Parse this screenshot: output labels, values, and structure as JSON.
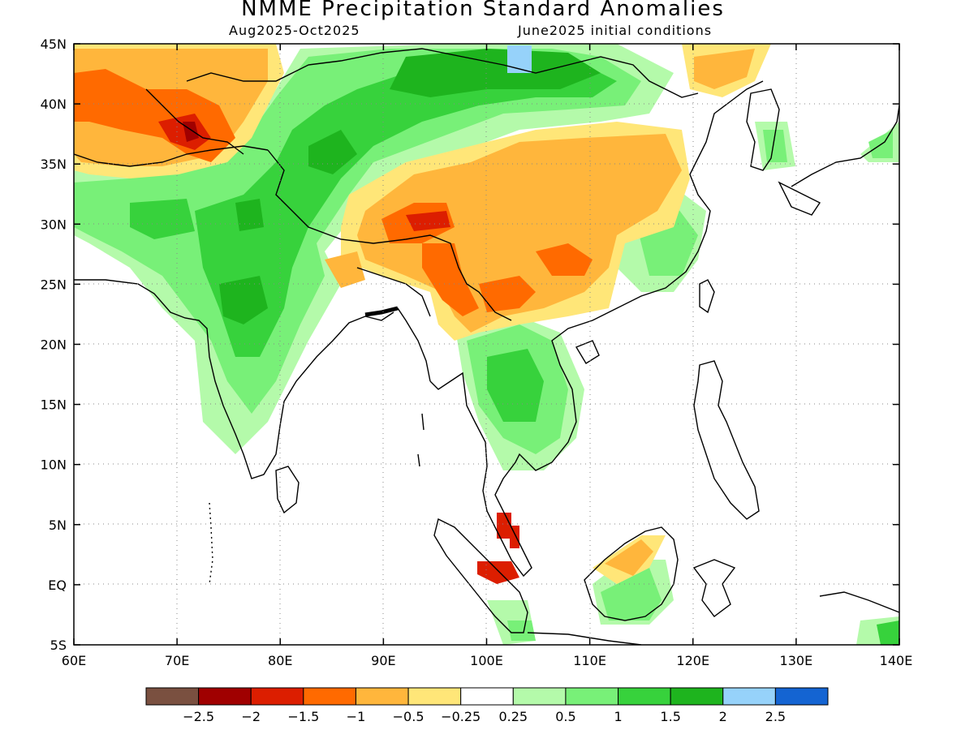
{
  "title": "NMME Precipitation Standard Anomalies",
  "period": "Aug2025-Oct2025",
  "init": "June2025 initial conditions",
  "lat_labels": [
    "45N",
    "40N",
    "35N",
    "30N",
    "25N",
    "20N",
    "15N",
    "10N",
    "5N",
    "EQ",
    "5S"
  ],
  "lon_labels": [
    "60E",
    "70E",
    "80E",
    "90E",
    "100E",
    "110E",
    "120E",
    "130E",
    "140E"
  ],
  "legend": {
    "colors": [
      "#7a5040",
      "#a00000",
      "#dc1e00",
      "#ff6a00",
      "#ffb63c",
      "#ffe678",
      "#ffffff",
      "#b4faaa",
      "#78f078",
      "#37d23c",
      "#1eb41e",
      "#96d2fa",
      "#1464d2"
    ],
    "labels": [
      "-2.5",
      "-2",
      "-1.5",
      "-1",
      "-0.5",
      "-0.25",
      "0.25",
      "0.5",
      "1",
      "1.5",
      "2",
      "2.5"
    ]
  },
  "map": {
    "lon_range": [
      60,
      140
    ],
    "lat_range": [
      -5,
      45
    ],
    "grid": "dotted"
  }
}
